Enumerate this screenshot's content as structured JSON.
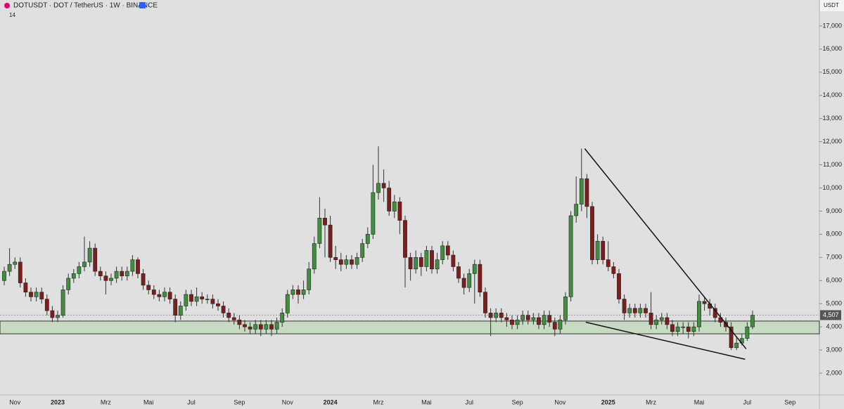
{
  "chart_data": {
    "type": "candlestick",
    "title": "DOTUSDT · DOT / TetherUS · 1W · BINANCE",
    "subtitle": "14",
    "currency": "USDT",
    "categories": [
      null,
      null,
      "Nov",
      null,
      null,
      null,
      null,
      null,
      null,
      null,
      "2023",
      null,
      null,
      null,
      null,
      null,
      null,
      null,
      null,
      "Mrz",
      null,
      null,
      null,
      null,
      null,
      null,
      null,
      "Mai",
      null,
      null,
      null,
      null,
      null,
      null,
      null,
      "Jul",
      null,
      null,
      null,
      null,
      null,
      null,
      null,
      null,
      "Sep",
      null,
      null,
      null,
      null,
      null,
      null,
      null,
      null,
      "Nov",
      null,
      null,
      null,
      null,
      null,
      null,
      null,
      "2024",
      null,
      null,
      null,
      null,
      null,
      null,
      null,
      null,
      "Mrz",
      null,
      null,
      null,
      null,
      null,
      null,
      null,
      null,
      "Mai",
      null,
      null,
      null,
      null,
      null,
      null,
      null,
      "Jul",
      null,
      null,
      null,
      null,
      null,
      null,
      null,
      null,
      "Sep",
      null,
      null,
      null,
      null,
      null,
      null,
      null,
      "Nov",
      null,
      null,
      null,
      null,
      null,
      null,
      null,
      null,
      "2025",
      null,
      null,
      null,
      null,
      null,
      null,
      null,
      "Mrz",
      null,
      null,
      null,
      null,
      null,
      null,
      null,
      null,
      "Mai",
      null,
      null,
      null,
      null,
      null,
      null,
      null,
      null,
      "Jul",
      null,
      null,
      null,
      null,
      null,
      null,
      null,
      "Sep"
    ],
    "open": [
      6.0,
      6.4,
      6.7,
      6.8,
      5.9,
      5.5,
      5.3,
      5.5,
      5.2,
      4.7,
      4.4,
      4.5,
      5.6,
      6.1,
      6.3,
      6.6,
      6.8,
      7.4,
      6.4,
      6.2,
      6.0,
      6.1,
      6.4,
      6.2,
      6.4,
      6.9,
      6.3,
      5.8,
      5.6,
      5.4,
      5.3,
      5.5,
      5.2,
      4.5,
      4.9,
      5.4,
      5.1,
      5.3,
      5.2,
      5.2,
      5.0,
      4.9,
      4.6,
      4.4,
      4.3,
      4.1,
      4.0,
      3.9,
      4.1,
      3.9,
      4.1,
      3.9,
      4.2,
      4.6,
      5.4,
      5.6,
      5.4,
      5.6,
      6.5,
      7.6,
      8.7,
      8.4,
      7.0,
      6.9,
      6.7,
      6.9,
      6.7,
      7.0,
      7.6,
      8.0,
      9.8,
      10.2,
      10.0,
      9.0,
      9.4,
      8.6,
      7.0,
      6.5,
      7.0,
      6.6,
      7.3,
      6.5,
      6.9,
      7.5,
      7.1,
      6.6,
      6.1,
      5.7,
      6.3,
      6.7,
      5.5,
      4.6,
      4.4,
      4.6,
      4.4,
      4.3,
      4.1,
      4.3,
      4.5,
      4.3,
      4.4,
      4.1,
      4.5,
      4.2,
      3.9,
      4.3,
      5.3,
      8.8,
      9.3,
      10.4,
      9.2,
      6.9,
      7.7,
      6.9,
      6.6,
      6.3,
      5.2,
      4.6,
      4.8,
      4.6,
      4.8,
      4.6,
      4.1,
      4.3,
      4.4,
      4.1,
      3.8,
      4.0,
      4.0,
      3.8,
      4.0,
      5.1,
      5.0,
      4.8,
      4.4,
      4.2,
      4.0,
      3.1,
      3.3,
      3.5,
      4.0,
      null,
      null,
      null,
      null,
      null,
      null,
      null
    ],
    "close": [
      6.4,
      6.7,
      6.8,
      5.9,
      5.5,
      5.3,
      5.5,
      5.2,
      4.7,
      4.4,
      4.5,
      5.6,
      6.1,
      6.3,
      6.6,
      6.8,
      7.4,
      6.4,
      6.2,
      6.0,
      6.1,
      6.4,
      6.2,
      6.4,
      6.9,
      6.3,
      5.8,
      5.6,
      5.4,
      5.3,
      5.5,
      5.2,
      4.5,
      4.9,
      5.4,
      5.1,
      5.3,
      5.2,
      5.2,
      5.0,
      4.9,
      4.6,
      4.4,
      4.3,
      4.1,
      4.0,
      3.9,
      4.1,
      3.9,
      4.1,
      3.9,
      4.2,
      4.6,
      5.4,
      5.6,
      5.4,
      5.6,
      6.5,
      7.6,
      8.7,
      8.4,
      7.0,
      6.9,
      6.7,
      6.9,
      6.7,
      7.0,
      7.6,
      8.0,
      9.8,
      10.2,
      10.0,
      9.0,
      9.4,
      8.6,
      7.0,
      6.5,
      7.0,
      6.6,
      7.3,
      6.5,
      6.9,
      7.5,
      7.1,
      6.6,
      6.1,
      5.7,
      6.3,
      6.7,
      5.5,
      4.6,
      4.4,
      4.6,
      4.4,
      4.3,
      4.1,
      4.3,
      4.5,
      4.3,
      4.4,
      4.1,
      4.5,
      4.2,
      3.9,
      4.3,
      5.3,
      8.8,
      9.3,
      10.4,
      9.2,
      6.9,
      7.7,
      6.9,
      6.6,
      6.3,
      5.2,
      4.6,
      4.8,
      4.6,
      4.8,
      4.6,
      4.1,
      4.3,
      4.4,
      4.1,
      3.8,
      4.0,
      4.0,
      3.8,
      4.0,
      5.1,
      5.0,
      4.8,
      4.4,
      4.2,
      4.0,
      3.1,
      3.3,
      3.5,
      4.0,
      4.5,
      null,
      null,
      null,
      null,
      null,
      null,
      null
    ],
    "high": [
      6.6,
      7.4,
      7.0,
      7.0,
      6.1,
      5.7,
      5.7,
      5.7,
      5.4,
      4.9,
      4.7,
      5.8,
      6.3,
      6.5,
      6.8,
      7.9,
      7.7,
      7.6,
      6.6,
      6.4,
      6.3,
      6.6,
      6.6,
      6.6,
      7.1,
      7.0,
      6.5,
      6.0,
      5.8,
      5.6,
      5.7,
      5.7,
      5.4,
      5.1,
      5.6,
      5.6,
      5.7,
      5.5,
      5.4,
      5.4,
      5.2,
      5.1,
      4.8,
      4.6,
      4.5,
      4.3,
      4.2,
      4.3,
      4.3,
      4.3,
      4.3,
      4.4,
      4.8,
      5.6,
      5.8,
      5.8,
      6.0,
      6.8,
      7.9,
      9.6,
      9.1,
      8.8,
      7.5,
      7.2,
      7.1,
      7.1,
      7.2,
      7.8,
      8.3,
      11.0,
      11.8,
      10.8,
      10.3,
      9.7,
      9.6,
      8.8,
      7.2,
      7.3,
      7.2,
      7.5,
      7.5,
      7.2,
      7.7,
      7.7,
      7.3,
      6.8,
      6.3,
      6.5,
      6.9,
      6.9,
      5.7,
      4.8,
      4.8,
      4.8,
      4.6,
      4.5,
      4.5,
      4.7,
      4.7,
      4.6,
      4.6,
      4.7,
      4.7,
      4.4,
      4.5,
      5.5,
      9.0,
      10.5,
      11.7,
      10.6,
      9.4,
      8.0,
      7.9,
      7.7,
      6.8,
      6.5,
      5.4,
      5.0,
      5.0,
      5.0,
      5.0,
      5.5,
      4.5,
      4.6,
      4.6,
      4.3,
      4.2,
      4.2,
      4.2,
      4.2,
      5.4,
      5.3,
      5.2,
      5.0,
      4.6,
      4.4,
      4.2,
      3.6,
      3.7,
      4.2,
      4.7,
      null,
      null,
      null,
      null,
      null,
      null,
      null
    ],
    "low": [
      5.8,
      6.2,
      6.5,
      5.7,
      5.3,
      5.1,
      5.1,
      5.0,
      4.5,
      4.2,
      4.2,
      4.4,
      5.4,
      5.9,
      6.1,
      6.4,
      6.6,
      6.2,
      6.0,
      5.4,
      5.8,
      5.9,
      6.0,
      6.0,
      6.2,
      6.1,
      5.6,
      5.4,
      5.2,
      5.1,
      5.1,
      5.0,
      4.2,
      4.3,
      4.7,
      4.9,
      4.9,
      5.0,
      5.0,
      4.8,
      4.7,
      4.4,
      4.2,
      4.1,
      3.9,
      3.8,
      3.7,
      3.7,
      3.6,
      3.7,
      3.6,
      3.7,
      4.0,
      4.4,
      5.2,
      5.0,
      5.2,
      5.4,
      6.3,
      7.4,
      7.0,
      6.8,
      6.5,
      6.4,
      6.5,
      6.5,
      6.5,
      6.8,
      7.4,
      7.8,
      9.5,
      9.4,
      8.8,
      8.7,
      8.0,
      5.7,
      6.0,
      6.3,
      6.2,
      6.4,
      6.3,
      6.3,
      6.7,
      6.9,
      6.4,
      5.9,
      5.4,
      5.5,
      5.0,
      5.3,
      4.4,
      3.6,
      4.2,
      4.2,
      4.0,
      3.9,
      3.9,
      4.1,
      4.1,
      4.1,
      3.9,
      3.9,
      4.0,
      3.6,
      3.7,
      4.1,
      5.1,
      8.5,
      9.0,
      8.7,
      6.7,
      6.7,
      6.7,
      6.4,
      6.1,
      5.0,
      4.3,
      4.4,
      4.4,
      4.4,
      4.4,
      3.9,
      3.9,
      4.1,
      3.9,
      3.6,
      3.6,
      3.7,
      3.5,
      3.6,
      3.8,
      4.7,
      4.5,
      4.2,
      4.0,
      3.8,
      3.0,
      3.0,
      3.2,
      3.4,
      3.9,
      null,
      null,
      null,
      null,
      null,
      null,
      null
    ],
    "up_color": "#3f8f3f",
    "down_color": "#7f1d1d",
    "ylim": [
      1.12,
      18.12
    ],
    "yticks": [
      {
        "value": 2,
        "label": "2,000"
      },
      {
        "value": 3,
        "label": "3,000"
      },
      {
        "value": 4,
        "label": "4,000"
      },
      {
        "value": 5,
        "label": "5,000"
      },
      {
        "value": 6,
        "label": "6,000"
      },
      {
        "value": 7,
        "label": "7,000"
      },
      {
        "value": 8,
        "label": "8,000"
      },
      {
        "value": 9,
        "label": "9,000"
      },
      {
        "value": 10,
        "label": "10,000"
      },
      {
        "value": 11,
        "label": "11,000"
      },
      {
        "value": 12,
        "label": "12,000"
      },
      {
        "value": 13,
        "label": "13,000"
      },
      {
        "value": 14,
        "label": "14,000"
      },
      {
        "value": 15,
        "label": "15,000"
      },
      {
        "value": 16,
        "label": "16,000"
      },
      {
        "value": 17,
        "label": "17,000"
      }
    ],
    "last_price": {
      "value": 4.507,
      "label": "4,507"
    },
    "zone": {
      "low": 3.7,
      "high": 4.25
    },
    "trendlines": [
      {
        "from": [
          108.6,
          11.7
        ],
        "to": [
          138.8,
          3.05
        ]
      },
      {
        "from": [
          108.8,
          4.2
        ],
        "to": [
          138.6,
          2.6
        ]
      }
    ]
  }
}
